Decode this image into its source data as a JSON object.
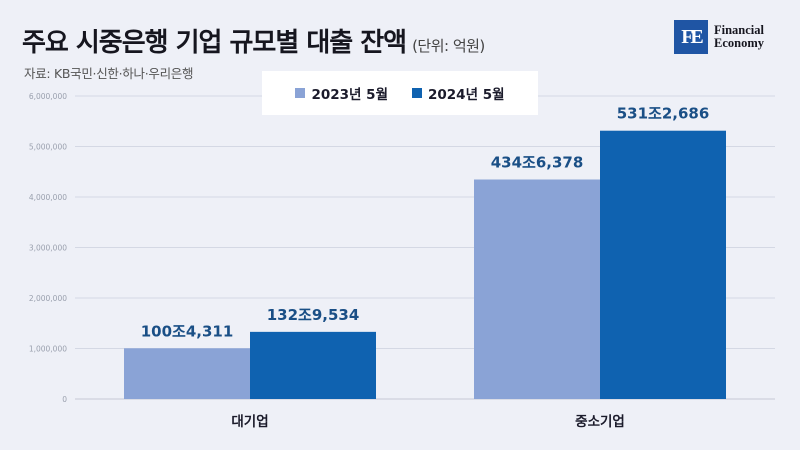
{
  "header": {
    "title": "주요 시중은행 기업 규모별 대출 잔액",
    "unit": "(단위: 억원)",
    "source": "자료: KB국민·신한·하나·우리은행"
  },
  "logo": {
    "mark": "FE",
    "line1": "Financial",
    "line2": "Economy"
  },
  "colors": {
    "series1": "#8aa3d6",
    "series2": "#0f62b0",
    "value_label": "#1a4f86",
    "grid": "#d4d8e4"
  },
  "chart_data": {
    "type": "bar",
    "title": "주요 시중은행 기업 규모별 대출 잔액",
    "categories": [
      "대기업",
      "중소기업"
    ],
    "series": [
      {
        "name": "2023년 5월",
        "values": [
          1004311,
          4346378
        ],
        "labels": [
          "100조4,311",
          "434조6,378"
        ]
      },
      {
        "name": "2024년 5월",
        "values": [
          1329534,
          5312686
        ],
        "labels": [
          "132조9,534",
          "531조2,686"
        ]
      }
    ],
    "ylim": [
      0,
      6000000
    ],
    "yticks": [
      0,
      1000000,
      2000000,
      3000000,
      4000000,
      5000000,
      6000000
    ],
    "ytick_labels": [
      "0",
      "1,000,000",
      "2,000,000",
      "3,000,000",
      "4,000,000",
      "5,000,000",
      "6,000,000"
    ],
    "grid": true,
    "legend_position": "top-center"
  }
}
